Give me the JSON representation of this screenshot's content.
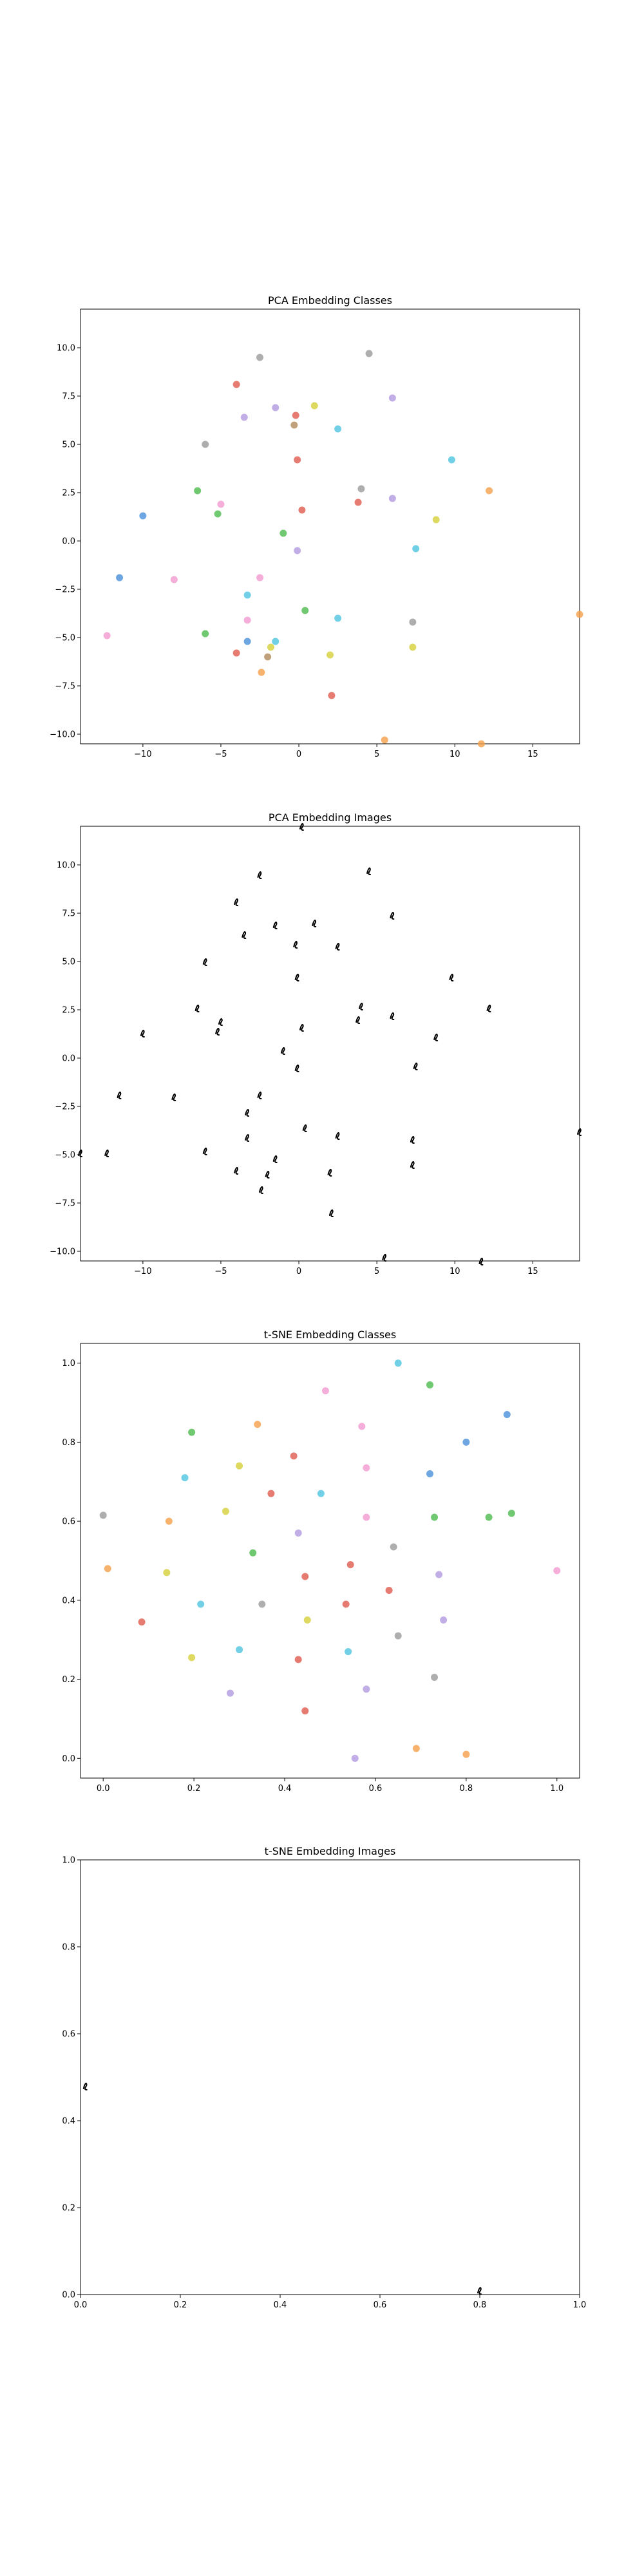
{
  "chart_data": [
    {
      "type": "scatter",
      "title": "PCA Embedding Classes",
      "xlabel": "",
      "ylabel": "",
      "xlim": [
        -14,
        18
      ],
      "ylim": [
        -10.5,
        12
      ],
      "xticks": [
        -10,
        -5,
        0,
        5,
        10,
        15
      ],
      "yticks": [
        -10.0,
        -7.5,
        -5.0,
        -2.5,
        0.0,
        2.5,
        5.0,
        7.5,
        10.0
      ],
      "ytick_labels": [
        "−10.0",
        "−7.5",
        "−5.0",
        "−2.5",
        "0.0",
        "2.5",
        "5.0",
        "7.5",
        "10.0"
      ],
      "xtick_labels": [
        "−10",
        "−5",
        "0",
        "5",
        "10",
        "15"
      ],
      "grid": false,
      "points": [
        {
          "x": -2.5,
          "y": 9.5,
          "color": "#9a9a9a"
        },
        {
          "x": 4.5,
          "y": 9.7,
          "color": "#9a9a9a"
        },
        {
          "x": -4,
          "y": 8.1,
          "color": "#e05a4f"
        },
        {
          "x": -1.5,
          "y": 6.9,
          "color": "#b39ae0"
        },
        {
          "x": 1.0,
          "y": 7.0,
          "color": "#d4cf3a"
        },
        {
          "x": 6.0,
          "y": 7.4,
          "color": "#b39ae0"
        },
        {
          "x": -3.5,
          "y": 6.4,
          "color": "#b39ae0"
        },
        {
          "x": -0.2,
          "y": 6.5,
          "color": "#e05a4f"
        },
        {
          "x": -0.3,
          "y": 6.0,
          "color": "#b08a5a"
        },
        {
          "x": 2.5,
          "y": 5.8,
          "color": "#4ec4e0"
        },
        {
          "x": -6.0,
          "y": 5.0,
          "color": "#9a9a9a"
        },
        {
          "x": -0.1,
          "y": 4.2,
          "color": "#e05a4f"
        },
        {
          "x": 9.8,
          "y": 4.2,
          "color": "#4ec4e0"
        },
        {
          "x": -6.5,
          "y": 2.6,
          "color": "#4cbc4c"
        },
        {
          "x": 4.0,
          "y": 2.7,
          "color": "#9a9a9a"
        },
        {
          "x": 12.2,
          "y": 2.6,
          "color": "#f5a04a"
        },
        {
          "x": 6.0,
          "y": 2.2,
          "color": "#b39ae0"
        },
        {
          "x": 3.8,
          "y": 2.0,
          "color": "#e05a4f"
        },
        {
          "x": -5.0,
          "y": 1.9,
          "color": "#f39ad0"
        },
        {
          "x": -10.0,
          "y": 1.3,
          "color": "#4a90d9"
        },
        {
          "x": -5.2,
          "y": 1.4,
          "color": "#4cbc4c"
        },
        {
          "x": 0.2,
          "y": 1.6,
          "color": "#e05a4f"
        },
        {
          "x": 8.8,
          "y": 1.1,
          "color": "#d4cf3a"
        },
        {
          "x": -1.0,
          "y": 0.4,
          "color": "#4cbc4c"
        },
        {
          "x": 7.5,
          "y": -0.4,
          "color": "#4ec4e0"
        },
        {
          "x": -0.1,
          "y": -0.5,
          "color": "#b39ae0"
        },
        {
          "x": -11.5,
          "y": -1.9,
          "color": "#4a90d9"
        },
        {
          "x": -8.0,
          "y": -2.0,
          "color": "#f39ad0"
        },
        {
          "x": -2.5,
          "y": -1.9,
          "color": "#f39ad0"
        },
        {
          "x": -3.3,
          "y": -2.8,
          "color": "#4ec4e0"
        },
        {
          "x": 0.4,
          "y": -3.6,
          "color": "#4cbc4c"
        },
        {
          "x": -3.3,
          "y": -4.1,
          "color": "#f39ad0"
        },
        {
          "x": 2.5,
          "y": -4.0,
          "color": "#4ec4e0"
        },
        {
          "x": 7.3,
          "y": -4.2,
          "color": "#9a9a9a"
        },
        {
          "x": 18.0,
          "y": -3.8,
          "color": "#f5a04a"
        },
        {
          "x": -12.3,
          "y": -4.9,
          "color": "#f39ad0"
        },
        {
          "x": -6.0,
          "y": -4.8,
          "color": "#4cbc4c"
        },
        {
          "x": -3.3,
          "y": -5.2,
          "color": "#4a90d9"
        },
        {
          "x": -1.5,
          "y": -5.2,
          "color": "#4ec4e0"
        },
        {
          "x": -1.8,
          "y": -5.5,
          "color": "#d4cf3a"
        },
        {
          "x": 7.3,
          "y": -5.5,
          "color": "#d4cf3a"
        },
        {
          "x": -4.0,
          "y": -5.8,
          "color": "#e05a4f"
        },
        {
          "x": -2.0,
          "y": -6.0,
          "color": "#b08a5a"
        },
        {
          "x": 2.0,
          "y": -5.9,
          "color": "#d4cf3a"
        },
        {
          "x": -2.4,
          "y": -6.8,
          "color": "#f5a04a"
        },
        {
          "x": 2.1,
          "y": -8.0,
          "color": "#e05a4f"
        },
        {
          "x": 5.5,
          "y": -10.3,
          "color": "#f5a04a"
        },
        {
          "x": 11.7,
          "y": -10.5,
          "color": "#f5a04a"
        }
      ]
    },
    {
      "type": "scatter",
      "title": "PCA Embedding Images",
      "xlabel": "",
      "ylabel": "",
      "xlim": [
        -14,
        18
      ],
      "ylim": [
        -10.5,
        12
      ],
      "xticks": [
        -10,
        -5,
        0,
        5,
        10,
        15
      ],
      "yticks": [
        -10.0,
        -7.5,
        -5.0,
        -2.5,
        0.0,
        2.5,
        5.0,
        7.5,
        10.0
      ],
      "ytick_labels": [
        "−10.0",
        "−7.5",
        "−5.0",
        "−2.5",
        "0.0",
        "2.5",
        "5.0",
        "7.5",
        "10.0"
      ],
      "xtick_labels": [
        "−10",
        "−5",
        "0",
        "5",
        "10",
        "15"
      ],
      "grid": false,
      "marker": "image-thumbnail",
      "points": [
        {
          "x": 0.2,
          "y": 12.0
        },
        {
          "x": -2.5,
          "y": 9.5
        },
        {
          "x": 4.5,
          "y": 9.7
        },
        {
          "x": -4,
          "y": 8.1
        },
        {
          "x": -1.5,
          "y": 6.9
        },
        {
          "x": 1.0,
          "y": 7.0
        },
        {
          "x": 6.0,
          "y": 7.4
        },
        {
          "x": -3.5,
          "y": 6.4
        },
        {
          "x": -0.2,
          "y": 5.9
        },
        {
          "x": 2.5,
          "y": 5.8
        },
        {
          "x": -6.0,
          "y": 5.0
        },
        {
          "x": -0.1,
          "y": 4.2
        },
        {
          "x": 9.8,
          "y": 4.2
        },
        {
          "x": -6.5,
          "y": 2.6
        },
        {
          "x": 4.0,
          "y": 2.7
        },
        {
          "x": 12.2,
          "y": 2.6
        },
        {
          "x": 6.0,
          "y": 2.2
        },
        {
          "x": 3.8,
          "y": 2.0
        },
        {
          "x": -5.0,
          "y": 1.9
        },
        {
          "x": -10.0,
          "y": 1.3
        },
        {
          "x": -5.2,
          "y": 1.4
        },
        {
          "x": 0.2,
          "y": 1.6
        },
        {
          "x": 8.8,
          "y": 1.1
        },
        {
          "x": -1.0,
          "y": 0.4
        },
        {
          "x": 7.5,
          "y": -0.4
        },
        {
          "x": -0.1,
          "y": -0.5
        },
        {
          "x": -11.5,
          "y": -1.9
        },
        {
          "x": -8.0,
          "y": -2.0
        },
        {
          "x": -2.5,
          "y": -1.9
        },
        {
          "x": -3.3,
          "y": -2.8
        },
        {
          "x": 0.4,
          "y": -3.6
        },
        {
          "x": -3.3,
          "y": -4.1
        },
        {
          "x": 2.5,
          "y": -4.0
        },
        {
          "x": 7.3,
          "y": -4.2
        },
        {
          "x": 18.0,
          "y": -3.8
        },
        {
          "x": -12.3,
          "y": -4.9
        },
        {
          "x": -6.0,
          "y": -4.8
        },
        {
          "x": -1.5,
          "y": -5.2
        },
        {
          "x": -4.0,
          "y": -5.8
        },
        {
          "x": -2.0,
          "y": -6.0
        },
        {
          "x": 2.0,
          "y": -5.9
        },
        {
          "x": 7.3,
          "y": -5.5
        },
        {
          "x": -2.4,
          "y": -6.8
        },
        {
          "x": 2.1,
          "y": -8.0
        },
        {
          "x": 5.5,
          "y": -10.3
        },
        {
          "x": 11.7,
          "y": -10.5
        },
        {
          "x": -14.0,
          "y": -4.9
        }
      ]
    },
    {
      "type": "scatter",
      "title": "t-SNE Embedding Classes",
      "xlabel": "",
      "ylabel": "",
      "xlim": [
        -0.05,
        1.05
      ],
      "ylim": [
        -0.05,
        1.05
      ],
      "xticks": [
        0.0,
        0.2,
        0.4,
        0.6,
        0.8,
        1.0
      ],
      "yticks": [
        0.0,
        0.2,
        0.4,
        0.6,
        0.8,
        1.0
      ],
      "xtick_labels": [
        "0.0",
        "0.2",
        "0.4",
        "0.6",
        "0.8",
        "1.0"
      ],
      "ytick_labels": [
        "0.0",
        "0.2",
        "0.4",
        "0.6",
        "0.8",
        "1.0"
      ],
      "grid": false,
      "points": [
        {
          "x": 0.65,
          "y": 1.0,
          "color": "#4ec4e0"
        },
        {
          "x": 0.72,
          "y": 0.945,
          "color": "#4cbc4c"
        },
        {
          "x": 0.49,
          "y": 0.93,
          "color": "#f39ad0"
        },
        {
          "x": 0.89,
          "y": 0.87,
          "color": "#4a90d9"
        },
        {
          "x": 0.34,
          "y": 0.845,
          "color": "#f5a04a"
        },
        {
          "x": 0.57,
          "y": 0.84,
          "color": "#f39ad0"
        },
        {
          "x": 0.195,
          "y": 0.825,
          "color": "#4cbc4c"
        },
        {
          "x": 0.8,
          "y": 0.8,
          "color": "#4a90d9"
        },
        {
          "x": 0.42,
          "y": 0.765,
          "color": "#e05a4f"
        },
        {
          "x": 0.3,
          "y": 0.74,
          "color": "#d4cf3a"
        },
        {
          "x": 0.58,
          "y": 0.735,
          "color": "#f39ad0"
        },
        {
          "x": 0.72,
          "y": 0.72,
          "color": "#4a90d9"
        },
        {
          "x": 0.18,
          "y": 0.71,
          "color": "#4ec4e0"
        },
        {
          "x": 0.48,
          "y": 0.67,
          "color": "#4ec4e0"
        },
        {
          "x": 0.37,
          "y": 0.67,
          "color": "#e05a4f"
        },
        {
          "x": 0.27,
          "y": 0.625,
          "color": "#d4cf3a"
        },
        {
          "x": 0.9,
          "y": 0.62,
          "color": "#4cbc4c"
        },
        {
          "x": 0.0,
          "y": 0.615,
          "color": "#9a9a9a"
        },
        {
          "x": 0.58,
          "y": 0.61,
          "color": "#f39ad0"
        },
        {
          "x": 0.73,
          "y": 0.61,
          "color": "#4cbc4c"
        },
        {
          "x": 0.85,
          "y": 0.61,
          "color": "#4cbc4c"
        },
        {
          "x": 0.145,
          "y": 0.6,
          "color": "#f5a04a"
        },
        {
          "x": 0.43,
          "y": 0.57,
          "color": "#b39ae0"
        },
        {
          "x": 0.64,
          "y": 0.535,
          "color": "#9a9a9a"
        },
        {
          "x": 0.33,
          "y": 0.52,
          "color": "#4cbc4c"
        },
        {
          "x": 0.545,
          "y": 0.49,
          "color": "#e05a4f"
        },
        {
          "x": 0.01,
          "y": 0.48,
          "color": "#f5a04a"
        },
        {
          "x": 1.0,
          "y": 0.475,
          "color": "#f39ad0"
        },
        {
          "x": 0.14,
          "y": 0.47,
          "color": "#d4cf3a"
        },
        {
          "x": 0.74,
          "y": 0.465,
          "color": "#b39ae0"
        },
        {
          "x": 0.445,
          "y": 0.46,
          "color": "#e05a4f"
        },
        {
          "x": 0.63,
          "y": 0.425,
          "color": "#e05a4f"
        },
        {
          "x": 0.215,
          "y": 0.39,
          "color": "#4ec4e0"
        },
        {
          "x": 0.35,
          "y": 0.39,
          "color": "#9a9a9a"
        },
        {
          "x": 0.535,
          "y": 0.39,
          "color": "#e05a4f"
        },
        {
          "x": 0.45,
          "y": 0.35,
          "color": "#d4cf3a"
        },
        {
          "x": 0.75,
          "y": 0.35,
          "color": "#b39ae0"
        },
        {
          "x": 0.085,
          "y": 0.345,
          "color": "#e05a4f"
        },
        {
          "x": 0.65,
          "y": 0.31,
          "color": "#9a9a9a"
        },
        {
          "x": 0.3,
          "y": 0.275,
          "color": "#4ec4e0"
        },
        {
          "x": 0.54,
          "y": 0.27,
          "color": "#4ec4e0"
        },
        {
          "x": 0.195,
          "y": 0.255,
          "color": "#d4cf3a"
        },
        {
          "x": 0.43,
          "y": 0.25,
          "color": "#e05a4f"
        },
        {
          "x": 0.73,
          "y": 0.205,
          "color": "#9a9a9a"
        },
        {
          "x": 0.58,
          "y": 0.175,
          "color": "#b39ae0"
        },
        {
          "x": 0.28,
          "y": 0.165,
          "color": "#b39ae0"
        },
        {
          "x": 0.445,
          "y": 0.12,
          "color": "#e05a4f"
        },
        {
          "x": 0.69,
          "y": 0.025,
          "color": "#f5a04a"
        },
        {
          "x": 0.555,
          "y": 0.0,
          "color": "#b39ae0"
        },
        {
          "x": 0.8,
          "y": 0.01,
          "color": "#f5a04a"
        }
      ]
    },
    {
      "type": "scatter",
      "title": "t-SNE Embedding Images",
      "xlabel": "",
      "ylabel": "",
      "xlim": [
        0.0,
        1.0
      ],
      "ylim": [
        0.0,
        1.0
      ],
      "xticks": [
        0.0,
        0.2,
        0.4,
        0.6,
        0.8,
        1.0
      ],
      "yticks": [
        0.0,
        0.2,
        0.4,
        0.6,
        0.8,
        1.0
      ],
      "xtick_labels": [
        "0.0",
        "0.2",
        "0.4",
        "0.6",
        "0.8",
        "1.0"
      ],
      "ytick_labels": [
        "0.0",
        "0.2",
        "0.4",
        "0.6",
        "0.8",
        "1.0"
      ],
      "grid": false,
      "marker": "image-thumbnail",
      "points": [
        {
          "x": 0.01,
          "y": 0.48
        },
        {
          "x": 0.8,
          "y": 0.01
        }
      ]
    }
  ]
}
